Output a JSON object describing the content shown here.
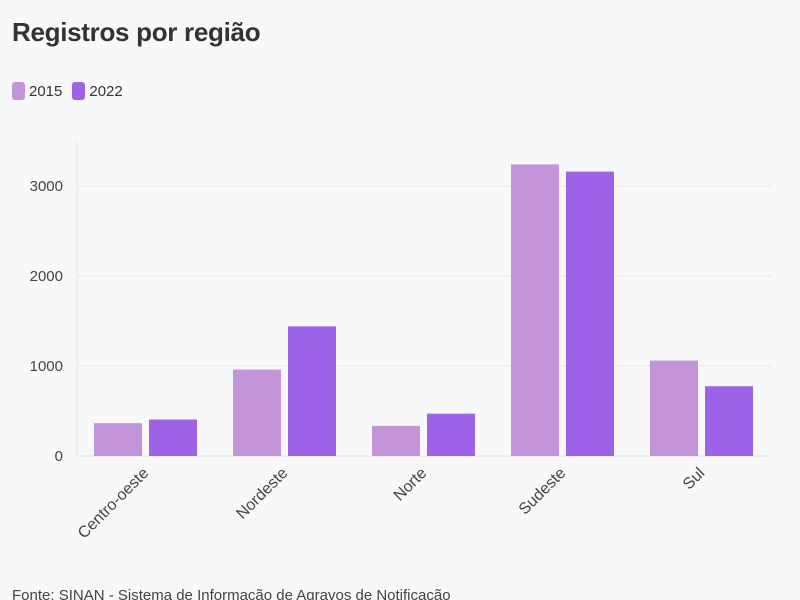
{
  "chart_data": {
    "type": "bar",
    "title": "Registros por região",
    "xlabel": "",
    "ylabel": "",
    "categories": [
      "Centro-oeste",
      "Nordeste",
      "Norte",
      "Sudeste",
      "Sul"
    ],
    "series": [
      {
        "name": "2015",
        "values": [
          365,
          960,
          335,
          3240,
          1060
        ],
        "color": "#c494d8"
      },
      {
        "name": "2022",
        "values": [
          405,
          1440,
          470,
          3160,
          775
        ],
        "color": "#9e62e6"
      }
    ],
    "ylim": [
      0,
      3500
    ],
    "yticks": [
      "0",
      "1000",
      "2000",
      "3000"
    ],
    "ytick_values": [
      0,
      1000,
      2000,
      3000
    ],
    "grid": true,
    "legend_position": "top-left",
    "source": "Fonte: SINAN - Sistema de Informação de Agravos de Notificação"
  }
}
